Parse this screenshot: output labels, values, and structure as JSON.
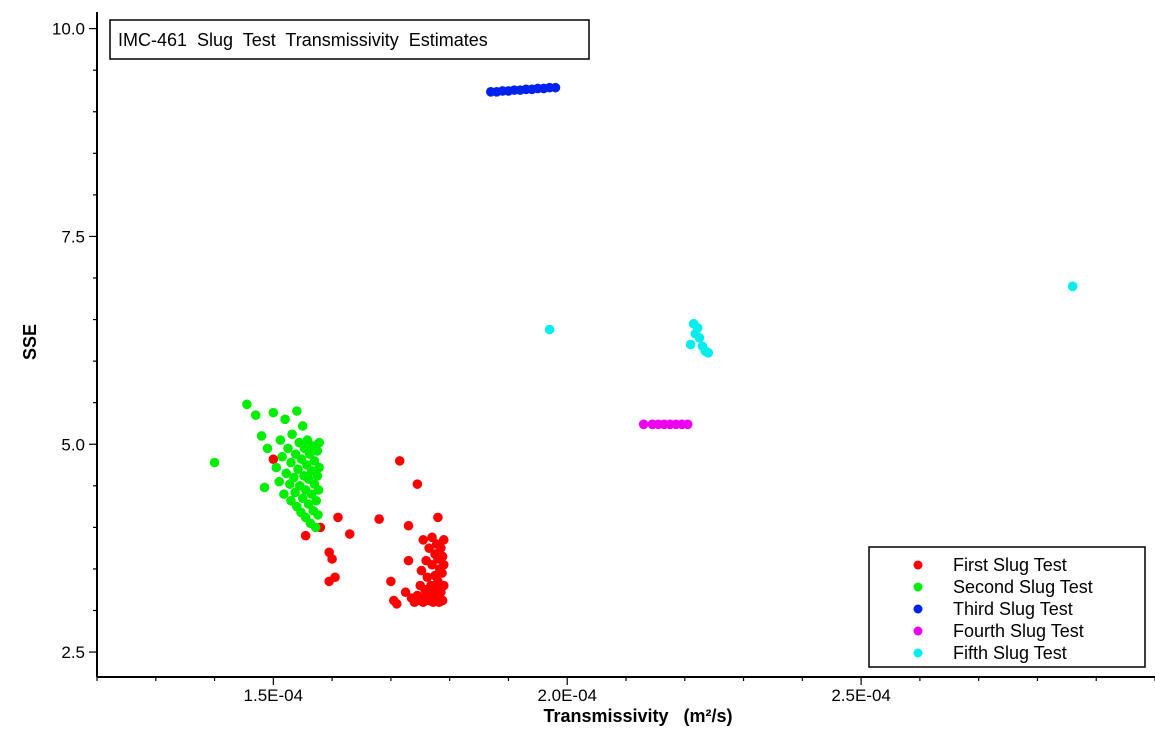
{
  "chart_data": {
    "type": "scatter",
    "title": "IMC-461  Slug  Test  Transmissivity  Estimates",
    "xlabel": "Transmissivity",
    "xlabel_unit": "(m²/s)",
    "ylabel": "SSE",
    "xlim": [
      0.00012,
      0.0003
    ],
    "ylim": [
      2.2,
      10.2
    ],
    "x_ticks": [
      {
        "value": 0.00015,
        "label": "1.5E-04"
      },
      {
        "value": 0.0002,
        "label": "2.0E-04"
      },
      {
        "value": 0.00025,
        "label": "2.5E-04"
      }
    ],
    "y_ticks": [
      {
        "value": 2.5,
        "label": "2.5"
      },
      {
        "value": 5.0,
        "label": "5.0"
      },
      {
        "value": 7.5,
        "label": "7.5"
      },
      {
        "value": 10.0,
        "label": "10.0"
      }
    ],
    "grid": false,
    "legend_position": "bottom-right",
    "series": [
      {
        "name": "First  Slug  Test",
        "color": "#ff0000",
        "points": [
          [
            0.00015,
            4.82
          ],
          [
            0.0001555,
            3.9
          ],
          [
            0.000158,
            4.0
          ],
          [
            0.0001595,
            3.7
          ],
          [
            0.00016,
            3.62
          ],
          [
            0.0001595,
            3.35
          ],
          [
            0.0001605,
            3.4
          ],
          [
            0.000161,
            4.12
          ],
          [
            0.000163,
            3.92
          ],
          [
            0.000168,
            4.1
          ],
          [
            0.00017,
            3.35
          ],
          [
            0.0001705,
            3.12
          ],
          [
            0.000171,
            3.08
          ],
          [
            0.0001715,
            4.8
          ],
          [
            0.000173,
            4.02
          ],
          [
            0.000173,
            3.6
          ],
          [
            0.0001745,
            4.52
          ],
          [
            0.0001725,
            3.22
          ],
          [
            0.0001735,
            3.15
          ],
          [
            0.000174,
            3.1
          ],
          [
            0.0001745,
            3.18
          ],
          [
            0.000175,
            3.3
          ],
          [
            0.000175,
            3.12
          ],
          [
            0.0001752,
            3.48
          ],
          [
            0.0001755,
            3.85
          ],
          [
            0.0001755,
            3.1
          ],
          [
            0.0001758,
            3.25
          ],
          [
            0.000176,
            3.6
          ],
          [
            0.000176,
            3.18
          ],
          [
            0.0001762,
            3.4
          ],
          [
            0.0001765,
            3.75
          ],
          [
            0.0001765,
            3.12
          ],
          [
            0.0001768,
            3.3
          ],
          [
            0.000177,
            3.88
          ],
          [
            0.000177,
            3.55
          ],
          [
            0.000177,
            3.2
          ],
          [
            0.0001772,
            3.1
          ],
          [
            0.0001775,
            3.68
          ],
          [
            0.0001775,
            3.42
          ],
          [
            0.0001775,
            3.15
          ],
          [
            0.0001778,
            3.8
          ],
          [
            0.0001778,
            3.28
          ],
          [
            0.000178,
            4.12
          ],
          [
            0.000178,
            3.62
          ],
          [
            0.000178,
            3.35
          ],
          [
            0.0001782,
            3.1
          ],
          [
            0.0001783,
            3.5
          ],
          [
            0.0001785,
            3.75
          ],
          [
            0.0001785,
            3.22
          ],
          [
            0.0001787,
            3.45
          ],
          [
            0.0001788,
            3.12
          ],
          [
            0.0001788,
            3.65
          ],
          [
            0.000179,
            3.3
          ],
          [
            0.000179,
            3.85
          ],
          [
            0.000179,
            3.55
          ]
        ]
      },
      {
        "name": "Second  Slug  Test",
        "color": "#00ee00",
        "points": [
          [
            0.00014,
            4.78
          ],
          [
            0.0001455,
            5.48
          ],
          [
            0.000147,
            5.35
          ],
          [
            0.000148,
            5.1
          ],
          [
            0.0001485,
            4.48
          ],
          [
            0.000149,
            4.95
          ],
          [
            0.00015,
            5.38
          ],
          [
            0.0001505,
            4.72
          ],
          [
            0.000151,
            4.55
          ],
          [
            0.0001512,
            5.05
          ],
          [
            0.0001515,
            4.85
          ],
          [
            0.0001518,
            4.4
          ],
          [
            0.000152,
            5.3
          ],
          [
            0.0001522,
            4.65
          ],
          [
            0.0001525,
            4.95
          ],
          [
            0.0001528,
            4.52
          ],
          [
            0.000153,
            4.32
          ],
          [
            0.000153,
            4.78
          ],
          [
            0.0001532,
            5.12
          ],
          [
            0.0001535,
            4.6
          ],
          [
            0.0001537,
            4.42
          ],
          [
            0.0001538,
            4.88
          ],
          [
            0.000154,
            5.4
          ],
          [
            0.000154,
            4.25
          ],
          [
            0.0001542,
            4.7
          ],
          [
            0.0001544,
            5.02
          ],
          [
            0.0001545,
            4.5
          ],
          [
            0.0001547,
            4.18
          ],
          [
            0.0001548,
            4.82
          ],
          [
            0.000155,
            4.35
          ],
          [
            0.000155,
            5.22
          ],
          [
            0.0001552,
            4.62
          ],
          [
            0.0001553,
            4.95
          ],
          [
            0.0001555,
            4.12
          ],
          [
            0.0001555,
            4.45
          ],
          [
            0.0001557,
            4.75
          ],
          [
            0.0001558,
            5.05
          ],
          [
            0.000156,
            4.28
          ],
          [
            0.000156,
            4.58
          ],
          [
            0.0001562,
            4.88
          ],
          [
            0.0001563,
            4.05
          ],
          [
            0.0001565,
            4.4
          ],
          [
            0.0001565,
            4.68
          ],
          [
            0.0001567,
            4.98
          ],
          [
            0.0001568,
            4.2
          ],
          [
            0.000157,
            4.52
          ],
          [
            0.000157,
            4.8
          ],
          [
            0.0001572,
            4.0
          ],
          [
            0.0001573,
            4.32
          ],
          [
            0.0001575,
            4.62
          ],
          [
            0.0001575,
            4.92
          ],
          [
            0.0001576,
            4.15
          ],
          [
            0.0001577,
            4.45
          ],
          [
            0.0001578,
            4.72
          ],
          [
            0.0001578,
            5.02
          ]
        ]
      },
      {
        "name": "Third  Slug  Test",
        "color": "#0022ee",
        "points": [
          [
            0.000187,
            9.24
          ],
          [
            0.000188,
            9.24
          ],
          [
            0.000189,
            9.25
          ],
          [
            0.00019,
            9.25
          ],
          [
            0.000191,
            9.26
          ],
          [
            0.000192,
            9.26
          ],
          [
            0.000193,
            9.27
          ],
          [
            0.000194,
            9.27
          ],
          [
            0.000195,
            9.28
          ],
          [
            0.000196,
            9.28
          ],
          [
            0.000197,
            9.29
          ],
          [
            0.000198,
            9.29
          ]
        ]
      },
      {
        "name": "Fourth  Slug  Test",
        "color": "#ee00ee",
        "points": [
          [
            0.000213,
            5.24
          ],
          [
            0.0002145,
            5.24
          ],
          [
            0.0002155,
            5.24
          ],
          [
            0.0002165,
            5.24
          ],
          [
            0.0002175,
            5.24
          ],
          [
            0.0002185,
            5.24
          ],
          [
            0.0002195,
            5.24
          ],
          [
            0.0002205,
            5.24
          ]
        ]
      },
      {
        "name": "Fifth  Slug  Test",
        "color": "#00eeee",
        "points": [
          [
            0.000197,
            6.38
          ],
          [
            0.000221,
            6.2
          ],
          [
            0.0002215,
            6.45
          ],
          [
            0.0002218,
            6.33
          ],
          [
            0.0002222,
            6.4
          ],
          [
            0.0002225,
            6.28
          ],
          [
            0.000223,
            6.18
          ],
          [
            0.0002235,
            6.12
          ],
          [
            0.000224,
            6.1
          ],
          [
            0.000286,
            6.9
          ]
        ]
      }
    ]
  }
}
